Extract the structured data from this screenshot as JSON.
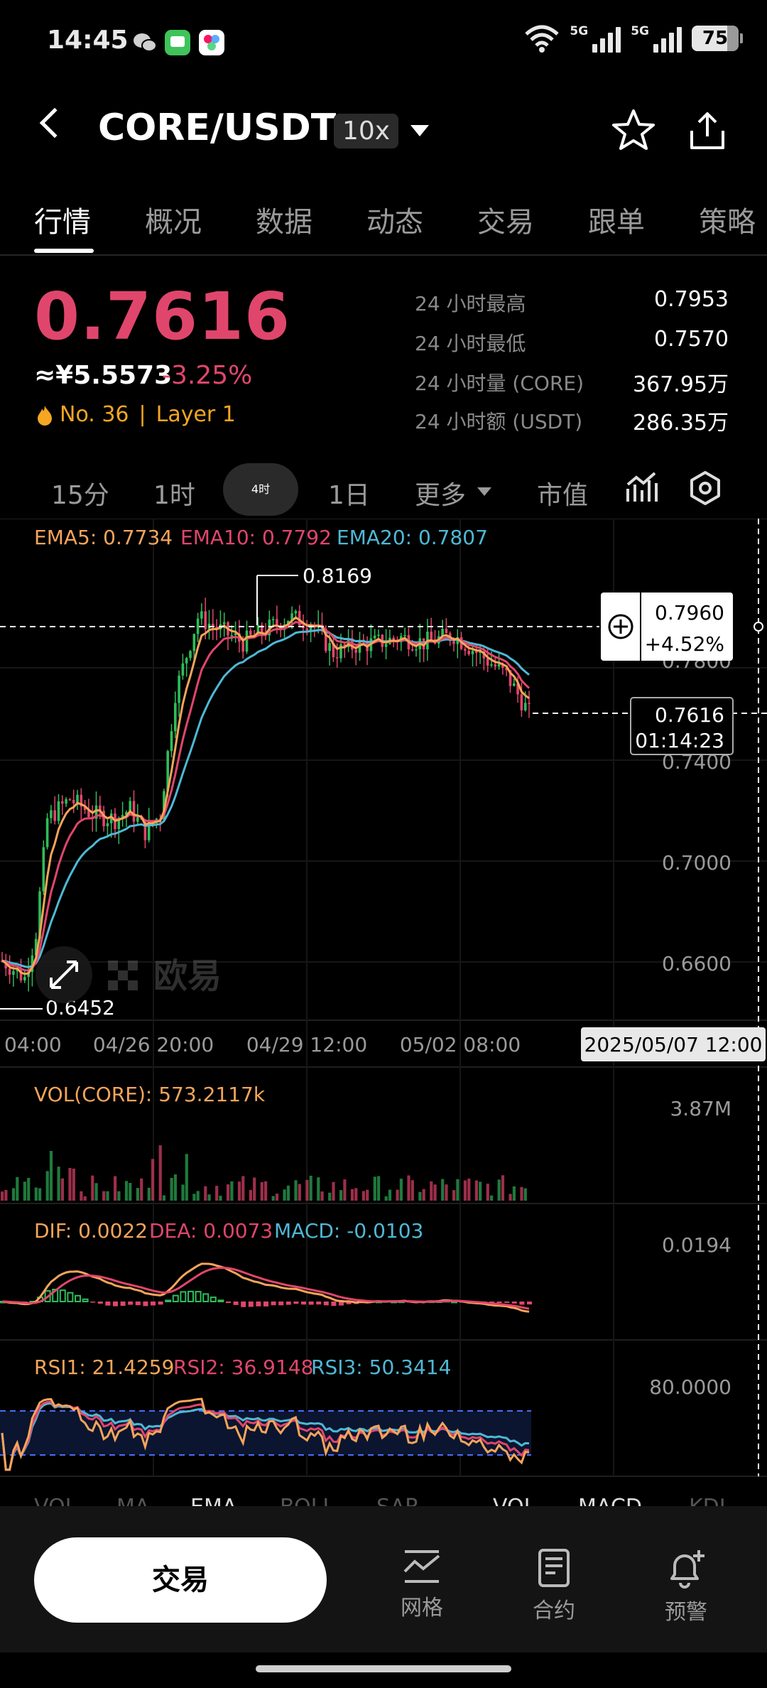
{
  "status": {
    "time": "14:45",
    "battery": "75",
    "net1": "5G",
    "net2": "5G"
  },
  "header": {
    "pair": "CORE/USDT",
    "leverage": "10x"
  },
  "tabs": [
    "行情",
    "概况",
    "数据",
    "动态",
    "交易",
    "跟单",
    "策略"
  ],
  "ticker": {
    "price": "0.7616",
    "cny": "≈¥5.5573",
    "change": "-3.25%",
    "rank": "No. 36",
    "sector": "Layer 1",
    "stats": [
      {
        "label": "24 小时最高",
        "value": "0.7953"
      },
      {
        "label": "24 小时最低",
        "value": "0.7570"
      },
      {
        "label": "24 小时量 (CORE)",
        "value": "367.95万"
      },
      {
        "label": "24 小时额 (USDT)",
        "value": "286.35万"
      }
    ]
  },
  "timeframes": {
    "t15": "15分",
    "t1h": "1时",
    "t4h": "4时",
    "t1d": "1日",
    "more": "更多",
    "mcap": "市值"
  },
  "chart": {
    "ema": {
      "ema5": "EMA5: 0.7734",
      "ema10": "EMA10: 0.7792",
      "ema20": "EMA20: 0.7807"
    },
    "high_label": "0.8169",
    "low_label": "0.6452",
    "y_ticks": [
      "0.7800",
      "0.7400",
      "0.7000",
      "0.6600"
    ],
    "crosshair": {
      "price": "0.7960",
      "pct": "+4.52%"
    },
    "last": {
      "price": "0.7616",
      "countdown": "01:14:23"
    },
    "x_ticks": [
      "04:00",
      "04/26 20:00",
      "04/29 12:00",
      "05/02 08:00"
    ],
    "cursor_date": "2025/05/07 12:00",
    "watermark": "欧易",
    "colors": {
      "up": "#2ebd59",
      "down": "#e0466c",
      "ema5": "#f5a55a",
      "ema10": "#e0466c",
      "ema20": "#4fb8d6"
    }
  },
  "volume": {
    "label": "VOL(CORE): 573.2117k",
    "max": "3.87M"
  },
  "macd": {
    "dif": "DIF: 0.0022",
    "dea": "DEA: 0.0073",
    "macd": "MACD: -0.0103",
    "max": "0.0194"
  },
  "rsi": {
    "rsi1": "RSI1: 21.4259",
    "rsi2": "RSI2: 36.9148",
    "rsi3": "RSI3: 50.3414",
    "max": "80.0000"
  },
  "indicator_tabs": [
    "VOL",
    "MA",
    "EMA",
    "BOLL",
    "SAR",
    "VOL",
    "MACD",
    "KDJ"
  ],
  "bottom": {
    "trade": "交易",
    "grid": "网格",
    "contract": "合约",
    "alert": "预警"
  }
}
